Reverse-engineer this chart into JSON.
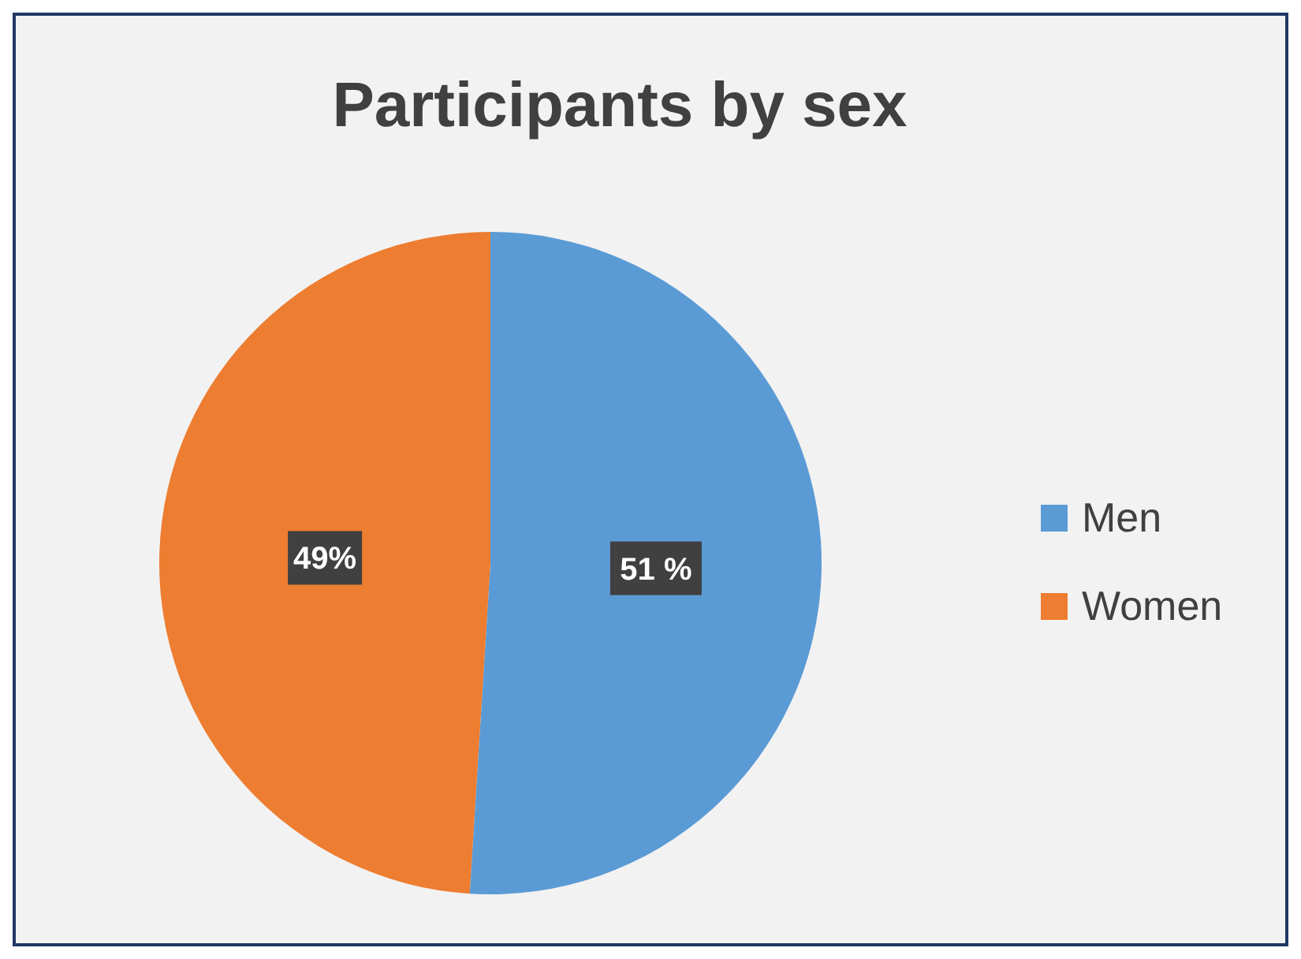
{
  "chart_data": {
    "type": "pie",
    "title": "Participants by sex",
    "categories": [
      "Men",
      "Women"
    ],
    "values": [
      51,
      49
    ],
    "colors": [
      "#5b9bd5",
      "#ed7d31"
    ],
    "value_labels": [
      "51 %",
      "49%"
    ],
    "legend": "right"
  }
}
